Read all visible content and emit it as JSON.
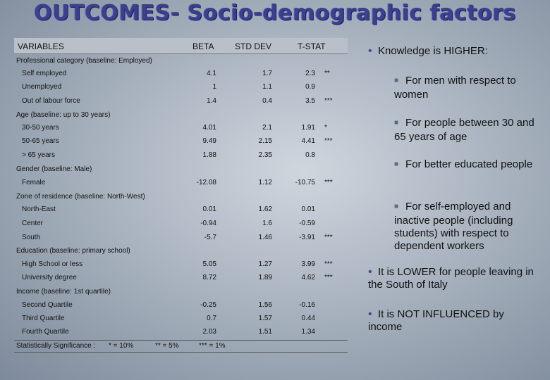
{
  "title": "OUTCOMES- Socio-demographic factors",
  "table": {
    "headers": {
      "variables": "VARIABLES",
      "beta": "BETA",
      "std_dev": "STD DEV",
      "t_stat": "T-STAT"
    },
    "categories": {
      "professional": "Professional category (baseline: Employed)",
      "age": "Age (baseline: up to 30 years)",
      "gender": "Gender (baseline: Male)",
      "zone": "Zone of residence (baseline: North-West)",
      "education": "Education (baseline: primary school)",
      "income": "Income (baseline: 1st quartile)"
    },
    "rows": [
      {
        "label": "Self employed",
        "beta": "4.1",
        "sd": "1.7",
        "t": "2.3",
        "sig": "**"
      },
      {
        "label": "Unemployed",
        "beta": "1",
        "sd": "1.1",
        "t": "0.9",
        "sig": ""
      },
      {
        "label": "Out of labour force",
        "beta": "1.4",
        "sd": "0.4",
        "t": "3.5",
        "sig": "***"
      },
      {
        "label": "30-50 years",
        "beta": "4.01",
        "sd": "2.1",
        "t": "1.91",
        "sig": "*"
      },
      {
        "label": "50-65 years",
        "beta": "9.49",
        "sd": "2.15",
        "t": "4.41",
        "sig": "***"
      },
      {
        "label": "> 65 years",
        "beta": "1.88",
        "sd": "2.35",
        "t": "0.8",
        "sig": ""
      },
      {
        "label": "Female",
        "beta": "-12.08",
        "sd": "1.12",
        "t": "-10.75",
        "sig": "***"
      },
      {
        "label": "North-East",
        "beta": "0.01",
        "sd": "1.62",
        "t": "0.01",
        "sig": ""
      },
      {
        "label": "Center",
        "beta": "-0.94",
        "sd": "1.6",
        "t": "-0.59",
        "sig": ""
      },
      {
        "label": "South",
        "beta": "-5.7",
        "sd": "1.46",
        "t": "-3.91",
        "sig": "***"
      },
      {
        "label": "High School or less",
        "beta": "5.05",
        "sd": "1.27",
        "t": "3.99",
        "sig": "***"
      },
      {
        "label": "University degree",
        "beta": "8.72",
        "sd": "1.89",
        "t": "4.62",
        "sig": "***"
      },
      {
        "label": "Second Quartile",
        "beta": "-0.25",
        "sd": "1.56",
        "t": "-0.16",
        "sig": ""
      },
      {
        "label": "Third Quartile",
        "beta": "0.7",
        "sd": "1.57",
        "t": "0.44",
        "sig": ""
      },
      {
        "label": "Fourth Quartile",
        "beta": "2.03",
        "sd": "1.51",
        "t": "1.34",
        "sig": ""
      }
    ],
    "footer": {
      "label": "Statistically Significance :",
      "s1": "* = 10%",
      "s2": "** = 5%",
      "s3": "*** = 1%"
    }
  },
  "bullets": {
    "higher": "Knowledge is HIGHER:",
    "men": "For men with respect to women",
    "age": "For people between 30 and 65 years of age",
    "educated": "For better educated people",
    "self_employed": "For self-employed and inactive people (including students) with respect to dependent workers",
    "lower": "It is LOWER for people leaving in the South of Italy",
    "not_influenced": "It is NOT INFLUENCED by income"
  }
}
